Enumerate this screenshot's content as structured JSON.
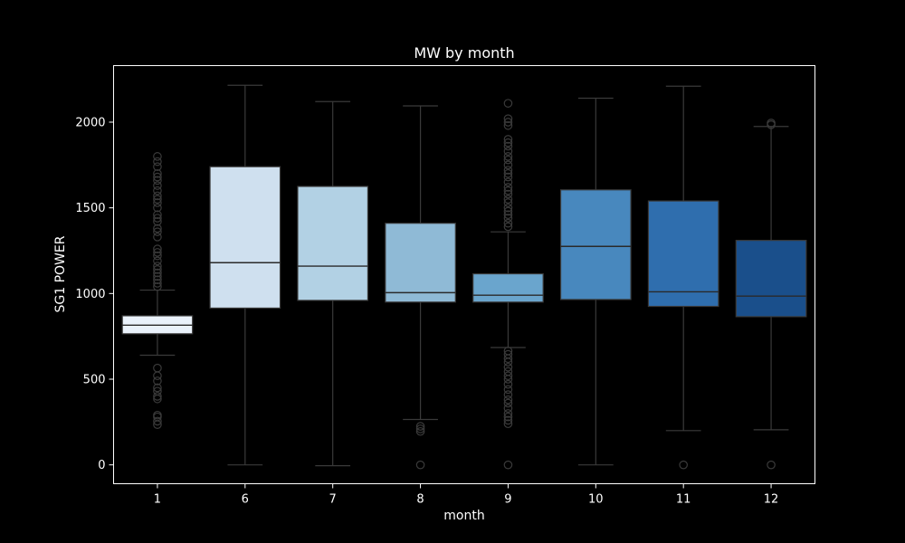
{
  "chart_data": {
    "type": "box",
    "title": "MW by month",
    "xlabel": "month",
    "ylabel": "SG1 POWER",
    "ylim": [
      -110,
      2330
    ],
    "yticks": [
      0,
      500,
      1000,
      1500,
      2000
    ],
    "categories": [
      "1",
      "6",
      "7",
      "8",
      "9",
      "10",
      "11",
      "12"
    ],
    "colors": [
      "#eaf2fb",
      "#cfe0ef",
      "#b2d1e4",
      "#8fbad6",
      "#6aa5cd",
      "#4888be",
      "#2f6eae",
      "#1a4f8b"
    ],
    "boxes": [
      {
        "month": "1",
        "whisker_low": 640,
        "q1": 765,
        "median": 815,
        "q3": 870,
        "whisker_high": 1020,
        "outliers": [
          235,
          255,
          280,
          290,
          385,
          400,
          430,
          450,
          490,
          520,
          565,
          1040,
          1060,
          1080,
          1100,
          1120,
          1140,
          1160,
          1190,
          1220,
          1240,
          1260,
          1330,
          1360,
          1380,
          1420,
          1440,
          1460,
          1500,
          1530,
          1550,
          1570,
          1600,
          1630,
          1660,
          1680,
          1700,
          1740,
          1770,
          1800
        ]
      },
      {
        "month": "6",
        "whisker_low": 0,
        "q1": 915,
        "median": 1180,
        "q3": 1740,
        "whisker_high": 2215,
        "outliers": []
      },
      {
        "month": "7",
        "whisker_low": -5,
        "q1": 960,
        "median": 1160,
        "q3": 1625,
        "whisker_high": 2120,
        "outliers": []
      },
      {
        "month": "8",
        "whisker_low": 265,
        "q1": 950,
        "median": 1005,
        "q3": 1410,
        "whisker_high": 2095,
        "outliers": [
          0,
          195,
          210,
          225
        ]
      },
      {
        "month": "9",
        "whisker_low": 685,
        "q1": 950,
        "median": 990,
        "q3": 1115,
        "whisker_high": 1360,
        "outliers": [
          0,
          240,
          260,
          280,
          300,
          330,
          360,
          380,
          410,
          440,
          470,
          500,
          520,
          545,
          570,
          600,
          620,
          645,
          665,
          1390,
          1410,
          1440,
          1460,
          1480,
          1500,
          1530,
          1550,
          1580,
          1600,
          1620,
          1650,
          1680,
          1700,
          1720,
          1750,
          1780,
          1800,
          1830,
          1860,
          1880,
          1900,
          1980,
          2000,
          2020,
          2110
        ]
      },
      {
        "month": "10",
        "whisker_low": 0,
        "q1": 965,
        "median": 1275,
        "q3": 1605,
        "whisker_high": 2140,
        "outliers": []
      },
      {
        "month": "11",
        "whisker_low": 200,
        "q1": 925,
        "median": 1010,
        "q3": 1540,
        "whisker_high": 2210,
        "outliers": [
          0
        ]
      },
      {
        "month": "12",
        "whisker_low": 205,
        "q1": 865,
        "median": 985,
        "q3": 1310,
        "whisker_high": 1975,
        "outliers": [
          0,
          1985,
          1995
        ]
      }
    ]
  }
}
